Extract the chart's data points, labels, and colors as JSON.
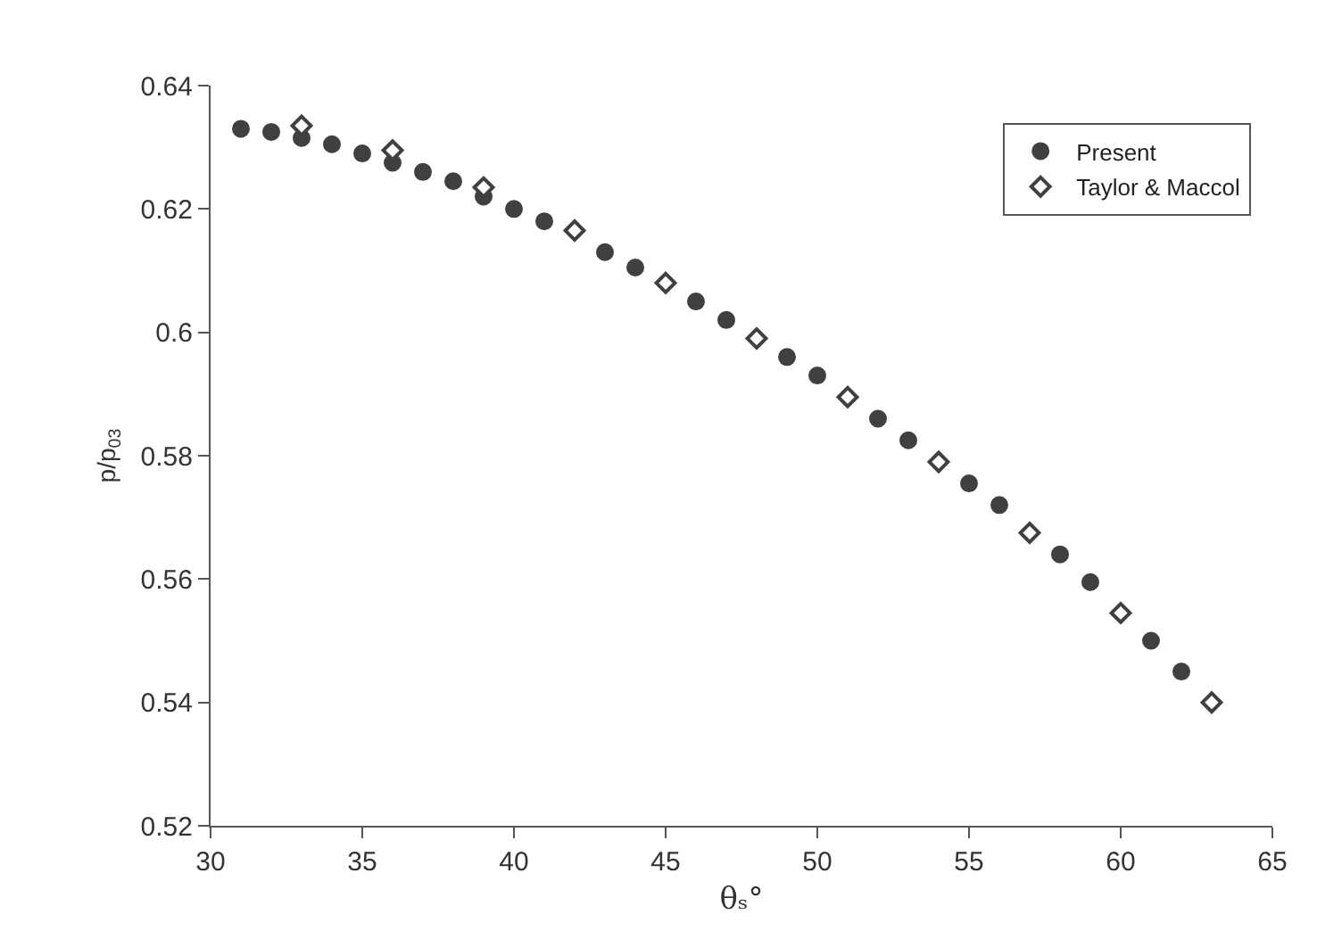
{
  "chart_data": {
    "type": "scatter",
    "xlabel": "θₛ°",
    "ylabel": "p/p$_{03}$",
    "xlim": [
      30,
      65
    ],
    "xticks": [
      30,
      35,
      40,
      45,
      50,
      55,
      60,
      65
    ],
    "ylim": [
      0.52,
      0.64
    ],
    "yticks": [
      0.52,
      0.54,
      0.56,
      0.58,
      0.6,
      0.62,
      0.64
    ],
    "legend": "top right",
    "series": [
      {
        "name": "Present",
        "color": "#404040",
        "marker": "circle",
        "x": [
          31,
          32,
          33,
          34,
          35,
          36,
          37,
          38,
          39,
          40,
          41,
          42,
          43,
          44,
          45,
          46,
          47,
          48,
          49,
          50,
          51,
          52,
          53,
          54,
          55,
          56,
          57,
          58,
          59,
          60,
          61,
          62
        ],
        "values": [
          0.633,
          0.6325,
          0.6315,
          0.6305,
          0.629,
          0.6275,
          0.626,
          0.6245,
          0.622,
          0.62,
          0.618,
          null,
          0.613,
          0.6105,
          null,
          0.605,
          0.602,
          null,
          0.596,
          0.593,
          null,
          0.586,
          0.5825,
          null,
          0.5755,
          0.572,
          null,
          0.564,
          0.5595,
          null,
          0.55,
          0.545
        ]
      },
      {
        "name": "Taylor & Maccol",
        "color": "#404040",
        "marker": "diamond-open",
        "x": [
          33,
          36,
          39,
          42,
          45,
          48,
          51,
          54,
          57,
          60,
          63
        ],
        "values": [
          0.6335,
          0.6295,
          0.6235,
          0.6165,
          0.608,
          0.599,
          0.5895,
          0.579,
          0.5675,
          0.5545,
          0.54
        ]
      }
    ]
  }
}
